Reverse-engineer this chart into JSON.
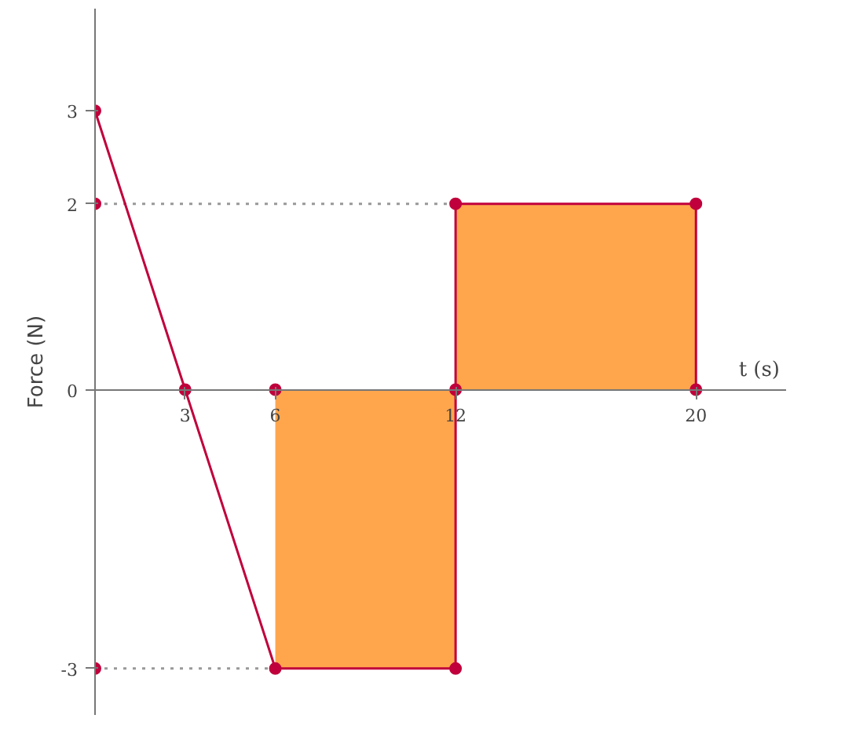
{
  "chart_data": {
    "type": "line",
    "xlabel": "t (s)",
    "ylabel": "Force (N)",
    "xlim": [
      0,
      23
    ],
    "ylim": [
      -3.5,
      4.1
    ],
    "xticks": [
      3,
      6,
      12,
      20
    ],
    "yticks": [
      -3,
      0,
      2,
      3
    ],
    "grid": false,
    "series": [
      {
        "type": "area",
        "color": "#ffa64d",
        "x": [
          6,
          12
        ],
        "values": [
          -3,
          -3
        ]
      },
      {
        "type": "area",
        "color": "#ffa64d",
        "x": [
          12,
          20
        ],
        "values": [
          2,
          2
        ]
      },
      {
        "type": "line",
        "line_style": "dotted",
        "color": "#999999",
        "marker": "none",
        "x": [
          0,
          12
        ],
        "values": [
          2,
          2
        ]
      },
      {
        "type": "line",
        "line_style": "dotted",
        "color": "#999999",
        "marker": "none",
        "x": [
          0,
          6
        ],
        "values": [
          -3,
          -3
        ]
      },
      {
        "line_style": "solid",
        "color": "#c0003c",
        "marker": "circle",
        "x": [
          0,
          3,
          6,
          12,
          12,
          20,
          20
        ],
        "values": [
          3,
          0,
          -3,
          -3,
          2,
          2,
          0
        ]
      },
      {
        "type": "scatter",
        "color": "#c0003c",
        "marker": "circle",
        "x": [
          0,
          0,
          6,
          12
        ],
        "values": [
          2,
          -3,
          0,
          0
        ]
      }
    ]
  }
}
